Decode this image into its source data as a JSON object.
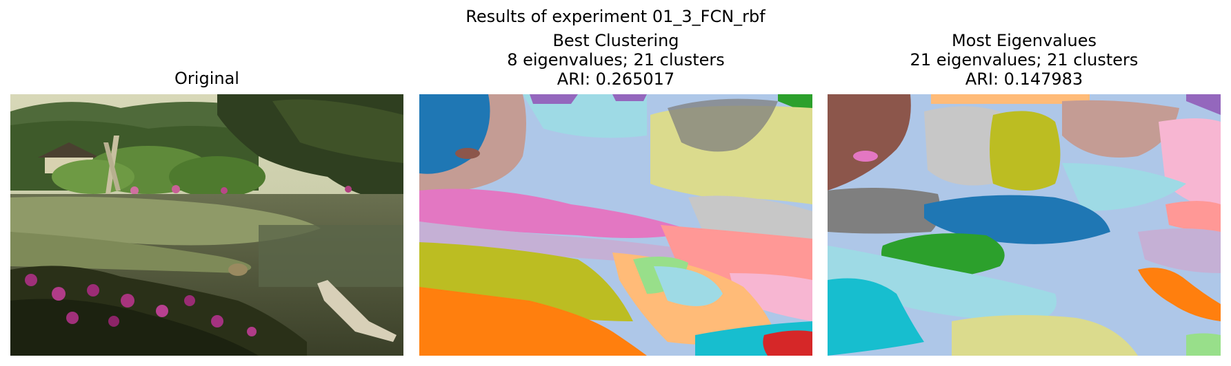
{
  "figure": {
    "suptitle": "Results of experiment 01_3_FCN_rbf"
  },
  "panels": {
    "original": {
      "title": "Original"
    },
    "best": {
      "title_line1": "Best Clustering",
      "title_line2": "8 eigenvalues; 21 clusters",
      "title_line3": "ARI: 0.265017"
    },
    "most": {
      "title_line1": "Most Eigenvalues",
      "title_line2": "21 eigenvalues; 21 clusters",
      "title_line3": "ARI: 0.147983"
    }
  },
  "palette": {
    "tab_blue": "#1f77b4",
    "tab_lightblue": "#aec7e8",
    "tab_orange": "#ff7f0e",
    "tab_lightorange": "#ffbb78",
    "tab_green": "#2ca02c",
    "tab_lightgreen": "#98df8a",
    "tab_red": "#d62728",
    "tab_pink": "#ff9896",
    "tab_purple": "#9467bd",
    "tab_lavender": "#c5b0d5",
    "tab_brown": "#8c564b",
    "tab_tan": "#c49c94",
    "tab_magenta": "#e377c2",
    "tab_lightmagenta": "#f7b6d2",
    "tab_gray": "#7f7f7f",
    "tab_lightgray": "#c7c7c7",
    "tab_olive": "#bcbd22",
    "tab_khaki": "#dbdb8d",
    "tab_cyan": "#17becf",
    "tab_lightcyan": "#9edae5"
  }
}
